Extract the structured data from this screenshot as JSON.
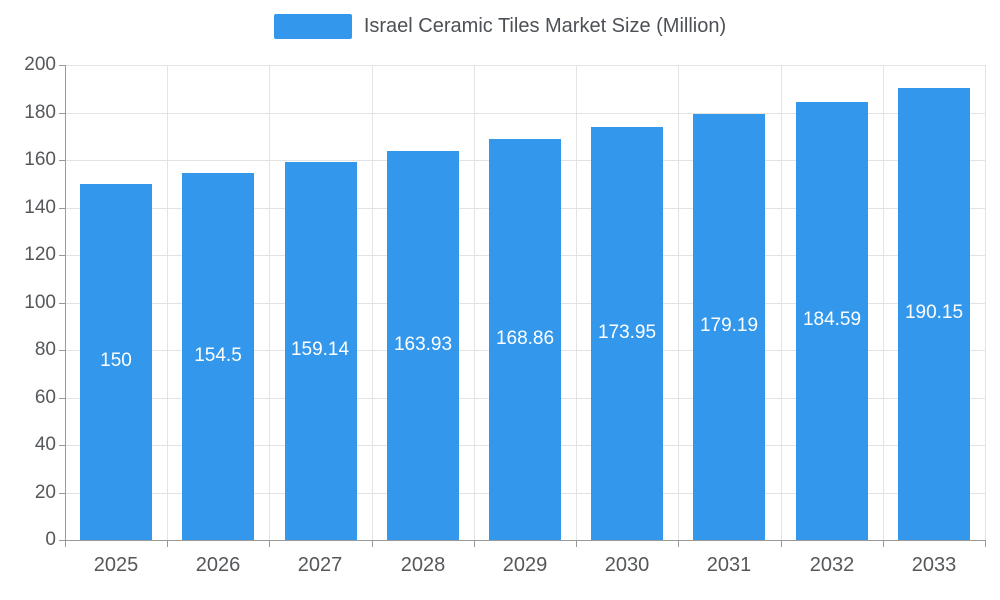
{
  "legend": {
    "label": "Israel Ceramic Tiles Market Size (Million)",
    "swatch_color": "#3398EC"
  },
  "chart_data": {
    "type": "bar",
    "title": "Israel Ceramic Tiles Market Size (Million)",
    "categories": [
      "2025",
      "2026",
      "2027",
      "2028",
      "2029",
      "2030",
      "2031",
      "2032",
      "2033"
    ],
    "values": [
      150,
      154.5,
      159.14,
      163.93,
      168.86,
      173.95,
      179.19,
      184.59,
      190.15
    ],
    "xlabel": "",
    "ylabel": "",
    "ylim": [
      0,
      200
    ],
    "ytick_step": 20,
    "ytick_labels": [
      "0",
      "20",
      "40",
      "60",
      "80",
      "100",
      "120",
      "140",
      "160",
      "180",
      "200"
    ],
    "bar_color": "#3398EC",
    "value_label_color": "#ffffff",
    "grid": true,
    "gridline_color": "#e3e3e3",
    "axis_line_color": "#999999",
    "axis_text_color": "#55585b",
    "legend_position": "top-center"
  }
}
